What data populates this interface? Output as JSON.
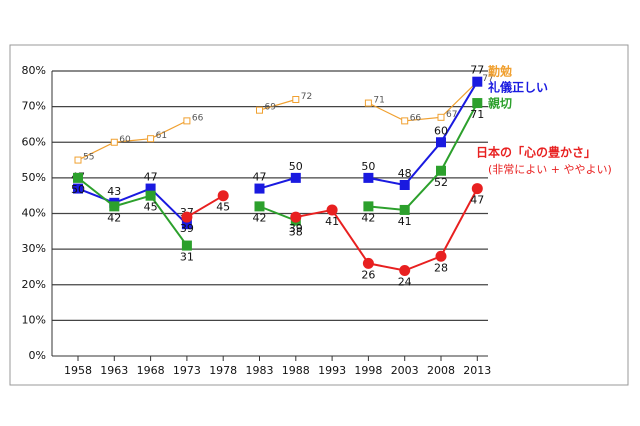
{
  "chart_data": {
    "type": "line",
    "categories": [
      "1958",
      "1963",
      "1968",
      "1973",
      "1978",
      "1983",
      "1988",
      "1993",
      "1998",
      "2003",
      "2008",
      "2013"
    ],
    "series": [
      {
        "name": "勤勉",
        "color": "#f0a030",
        "marker": "open-square",
        "values": [
          55,
          60,
          61,
          66,
          null,
          69,
          72,
          null,
          71,
          66,
          67,
          77
        ]
      },
      {
        "name": "礼儀正しい",
        "color": "#1a1ae0",
        "marker": "square",
        "values": [
          47,
          43,
          47,
          37,
          null,
          47,
          50,
          null,
          50,
          48,
          60,
          77
        ]
      },
      {
        "name": "親切",
        "color": "#2ca02c",
        "marker": "square",
        "values": [
          50,
          42,
          45,
          31,
          null,
          42,
          38,
          null,
          42,
          41,
          52,
          71
        ]
      },
      {
        "name": "日本の「心の豊かさ」",
        "color": "#e82020",
        "marker": "circle",
        "values": [
          null,
          null,
          null,
          39,
          45,
          null,
          39,
          41,
          26,
          24,
          28,
          47
        ]
      }
    ],
    "annotations": [
      "(非常によい + ややよい)"
    ],
    "ylim": [
      0,
      80
    ],
    "yticks": [
      {
        "value": 0,
        "label": "0%"
      },
      {
        "value": 10,
        "label": "10%"
      },
      {
        "value": 20,
        "label": "20%"
      },
      {
        "value": 30,
        "label": "30%"
      },
      {
        "value": 40,
        "label": "40%"
      },
      {
        "value": 50,
        "label": "50%"
      },
      {
        "value": 60,
        "label": "60%"
      },
      {
        "value": 70,
        "label": "70%"
      },
      {
        "value": 80,
        "label": "80%"
      }
    ],
    "grid": true
  }
}
